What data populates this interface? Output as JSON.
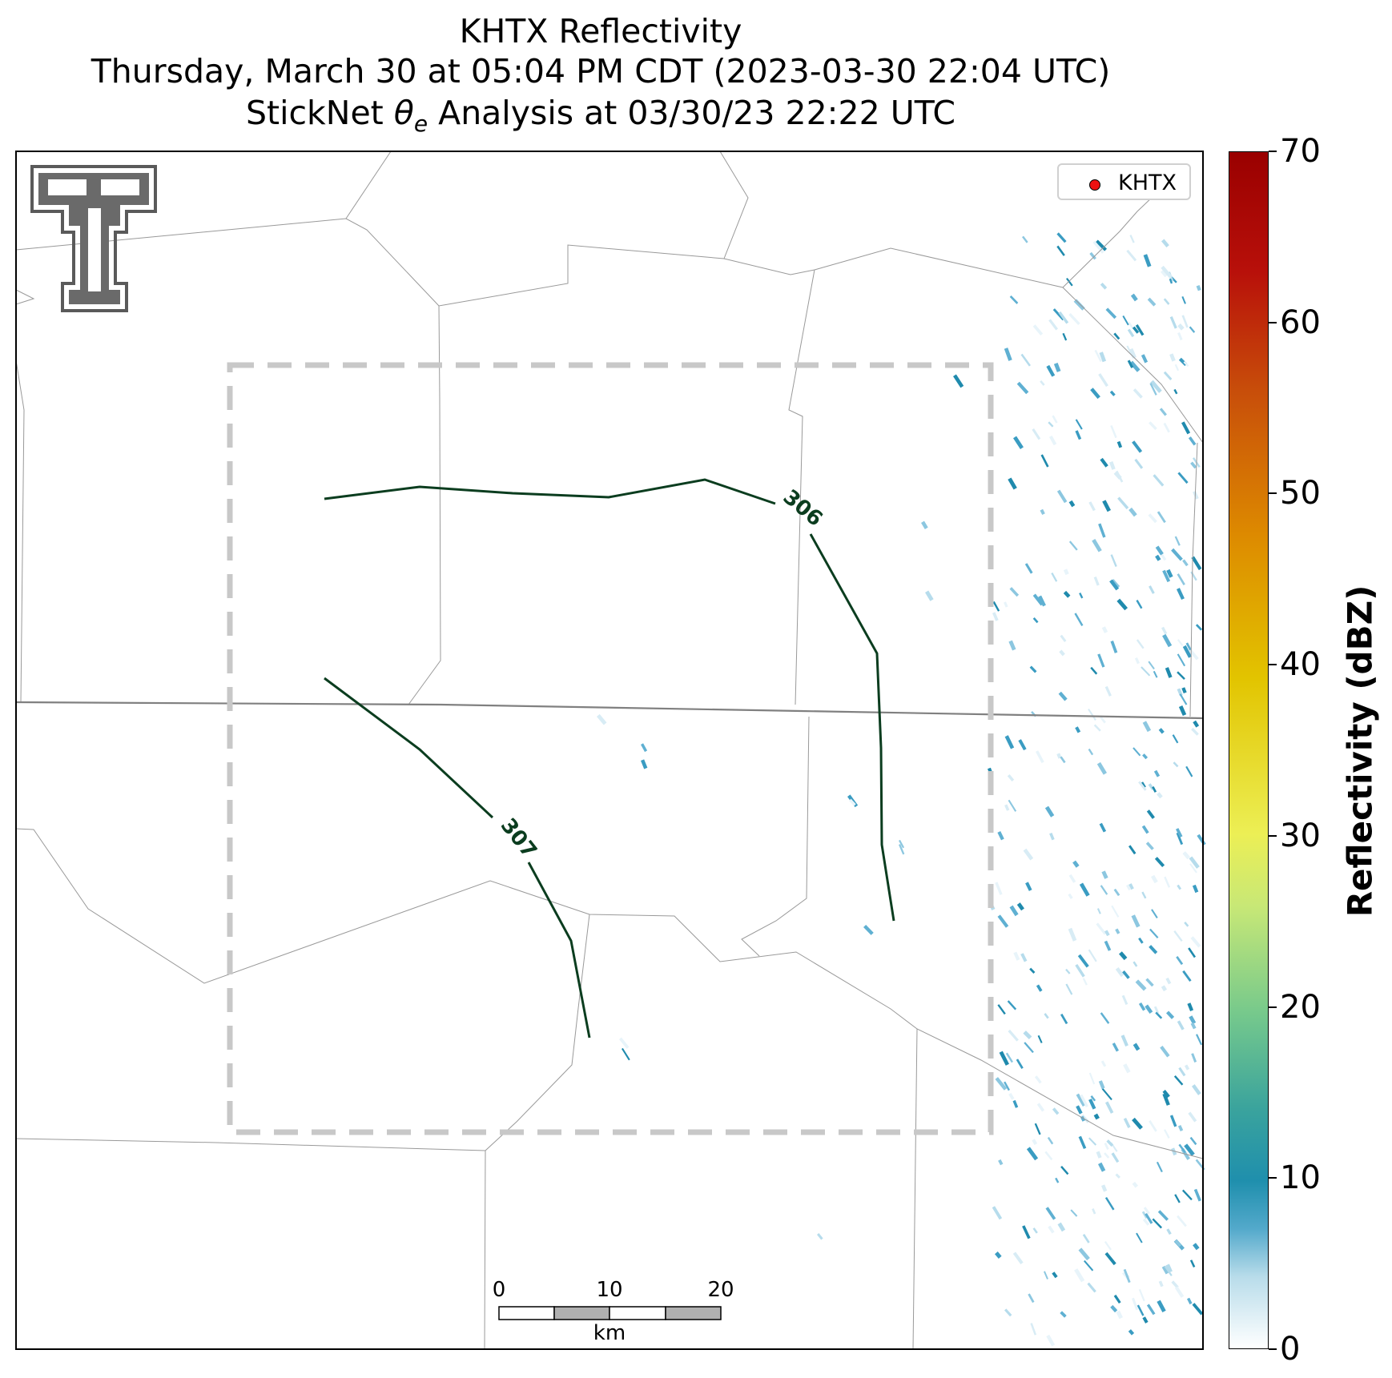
{
  "title": {
    "line1": "KHTX Reflectivity",
    "line2": "Thursday, March 30 at 05:04 PM CDT (2023-03-30 22:04 UTC)",
    "line3_prefix": "StickNet ",
    "line3_symbol": "θ",
    "line3_sub": "e",
    "line3_suffix": " Analysis at 03/30/23 22:22 UTC"
  },
  "legend": {
    "label": "KHTX",
    "marker_color": "#ee1111"
  },
  "colorbar": {
    "label": "Reflectivity (dBZ)",
    "ticks": [
      "0",
      "10",
      "20",
      "30",
      "40",
      "50",
      "60",
      "70"
    ],
    "range": [
      0,
      70
    ]
  },
  "contours": [
    {
      "label": "306"
    },
    {
      "label": "307"
    }
  ],
  "scalebar": {
    "ticks": [
      "0",
      "10",
      "20"
    ],
    "unit": "km"
  },
  "colors": {
    "contour": "#0b3d1f",
    "domain_box": "#c8c8c8",
    "state_border": "#808080",
    "county_border": "#999999",
    "logo": "#5a5a5a"
  }
}
